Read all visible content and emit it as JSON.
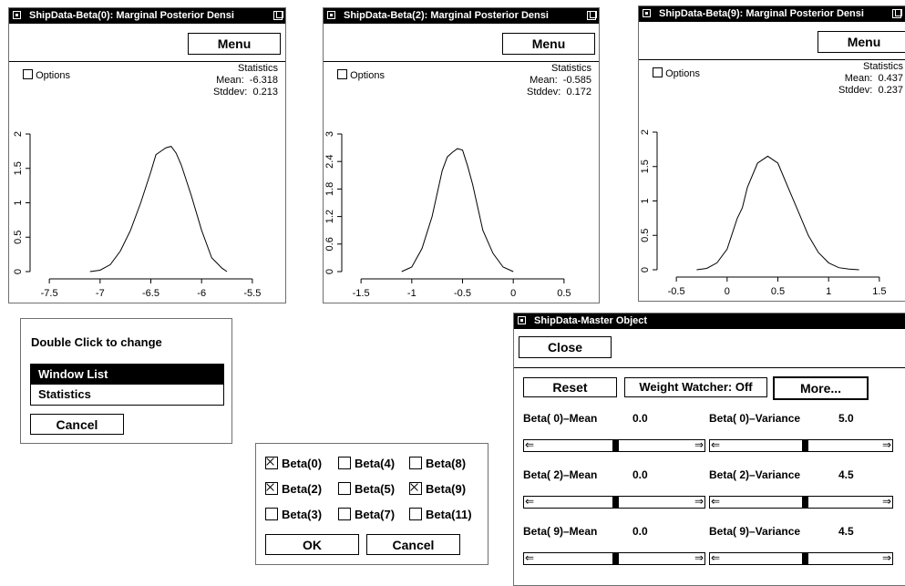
{
  "plots": [
    {
      "title": "ShipData-Beta(0): Marginal Posterior Densi",
      "menu": "Menu",
      "options": "Options",
      "stats_title": "Statistics",
      "mean_label": "Mean:",
      "mean_value": "-6.318",
      "stddev_label": "Stddev:",
      "stddev_value": "0.213",
      "xticks": [
        "-7.5",
        "-7",
        "-6.5",
        "-6",
        "-5.5"
      ],
      "yticks": [
        "0",
        "0.5",
        "1",
        "1.5",
        "2"
      ]
    },
    {
      "title": "ShipData-Beta(2): Marginal Posterior Densi",
      "menu": "Menu",
      "options": "Options",
      "stats_title": "Statistics",
      "mean_label": "Mean:",
      "mean_value": "-0.585",
      "stddev_label": "Stddev:",
      "stddev_value": "0.172",
      "xticks": [
        "-1.5",
        "-1",
        "-0.5",
        "0",
        "0.5"
      ],
      "yticks": [
        "0",
        "0.6",
        "1.2",
        "1.8",
        "2.4",
        "3"
      ]
    },
    {
      "title": "ShipData-Beta(9): Marginal Posterior Densi",
      "menu": "Menu",
      "options": "Options",
      "stats_title": "Statistics",
      "mean_label": "Mean:",
      "mean_value": "0.437",
      "stddev_label": "Stddev:",
      "stddev_value": "0.237",
      "xticks": [
        "-0.5",
        "0",
        "0.5",
        "1",
        "1.5"
      ],
      "yticks": [
        "0",
        "0.5",
        "1",
        "1.5",
        "2"
      ]
    }
  ],
  "chart_data": [
    {
      "type": "line",
      "x": [
        -7.1,
        -7.0,
        -6.9,
        -6.8,
        -6.7,
        -6.6,
        -6.5,
        -6.45,
        -6.4,
        -6.35,
        -6.3,
        -6.25,
        -6.2,
        -6.1,
        -6.0,
        -5.9,
        -5.8,
        -5.75
      ],
      "y": [
        0.0,
        0.02,
        0.1,
        0.3,
        0.6,
        1.0,
        1.45,
        1.7,
        1.75,
        1.8,
        1.82,
        1.72,
        1.55,
        1.1,
        0.6,
        0.2,
        0.05,
        0.0
      ],
      "xlim": [
        -7.6,
        -5.4
      ],
      "ylim": [
        0,
        2
      ]
    },
    {
      "type": "line",
      "x": [
        -1.1,
        -1.0,
        -0.9,
        -0.8,
        -0.7,
        -0.65,
        -0.6,
        -0.55,
        -0.5,
        -0.45,
        -0.4,
        -0.3,
        -0.2,
        -0.1,
        0.0
      ],
      "y": [
        0.0,
        0.1,
        0.5,
        1.2,
        2.2,
        2.5,
        2.6,
        2.68,
        2.65,
        2.3,
        1.9,
        0.9,
        0.4,
        0.1,
        0.0
      ],
      "xlim": [
        -1.6,
        0.6
      ],
      "ylim": [
        0,
        3
      ]
    },
    {
      "type": "line",
      "x": [
        -0.3,
        -0.2,
        -0.1,
        0.0,
        0.1,
        0.15,
        0.2,
        0.3,
        0.4,
        0.5,
        0.6,
        0.7,
        0.8,
        0.9,
        1.0,
        1.1,
        1.2,
        1.3
      ],
      "y": [
        0.0,
        0.02,
        0.1,
        0.3,
        0.75,
        0.9,
        1.2,
        1.55,
        1.65,
        1.55,
        1.2,
        0.85,
        0.5,
        0.25,
        0.1,
        0.03,
        0.01,
        0.0
      ],
      "xlim": [
        -0.6,
        1.6
      ],
      "ylim": [
        0,
        2
      ]
    }
  ],
  "window_list_dialog": {
    "heading": "Double Click to change",
    "items": [
      "Window List",
      "Statistics"
    ],
    "selected": "Window List",
    "cancel": "Cancel"
  },
  "beta_picker": {
    "items": [
      {
        "label": "Beta(0)",
        "checked": true
      },
      {
        "label": "Beta(4)",
        "checked": false
      },
      {
        "label": "Beta(8)",
        "checked": false
      },
      {
        "label": "Beta(2)",
        "checked": true
      },
      {
        "label": "Beta(5)",
        "checked": false
      },
      {
        "label": "Beta(9)",
        "checked": true
      },
      {
        "label": "Beta(3)",
        "checked": false
      },
      {
        "label": "Beta(7)",
        "checked": false
      },
      {
        "label": "Beta(11)",
        "checked": false
      }
    ],
    "ok": "OK",
    "cancel": "Cancel"
  },
  "master": {
    "title": "ShipData-Master Object",
    "close": "Close",
    "reset": "Reset",
    "weight_watcher": "Weight Watcher: Off",
    "more": "More...",
    "rows": [
      {
        "mean_label": "Beta( 0)–Mean",
        "mean_value": "0.0",
        "var_label": "Beta( 0)–Variance",
        "var_value": "5.0"
      },
      {
        "mean_label": "Beta( 2)–Mean",
        "mean_value": "0.0",
        "var_label": "Beta( 2)–Variance",
        "var_value": "4.5"
      },
      {
        "mean_label": "Beta( 9)–Mean",
        "mean_value": "0.0",
        "var_label": "Beta( 9)–Variance",
        "var_value": "4.5"
      }
    ]
  }
}
